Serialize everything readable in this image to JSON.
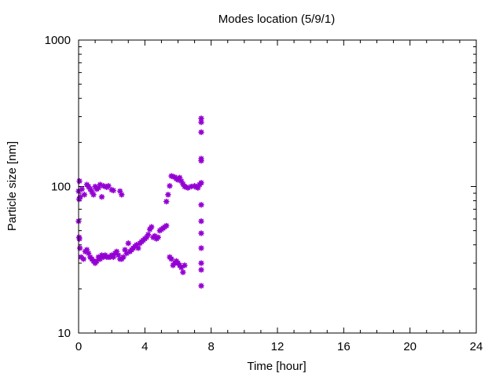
{
  "chart_data": {
    "type": "scatter",
    "title": "Modes location (5/9/1)",
    "xlabel": "Time [hour]",
    "ylabel": "Particle size [nm]",
    "xlim": [
      0,
      24
    ],
    "ylim": [
      10,
      1000
    ],
    "yscale": "log",
    "xticks": [
      0,
      4,
      8,
      12,
      16,
      20,
      24
    ],
    "xtick_labels": [
      "0",
      "4",
      "8",
      "12",
      "16",
      "20",
      "24"
    ],
    "yticks": [
      10,
      100,
      1000
    ],
    "ytick_labels": [
      "10",
      "100",
      "1000"
    ],
    "grid": false,
    "marker_color": "#9400d3",
    "series": [
      {
        "points": [
          [
            0.0,
            93
          ],
          [
            0.03,
            82
          ],
          [
            0.05,
            109
          ],
          [
            0.1,
            85
          ],
          [
            0.2,
            96
          ],
          [
            0.35,
            88
          ],
          [
            0.5,
            103
          ],
          [
            0.6,
            100
          ],
          [
            0.7,
            96
          ],
          [
            0.8,
            92
          ],
          [
            0.9,
            88
          ],
          [
            1.0,
            100
          ],
          [
            1.1,
            96
          ],
          [
            1.2,
            98
          ],
          [
            1.3,
            103
          ],
          [
            1.4,
            85
          ],
          [
            1.5,
            101
          ],
          [
            1.6,
            100
          ],
          [
            1.7,
            99
          ],
          [
            1.8,
            101
          ],
          [
            2.0,
            95
          ],
          [
            2.1,
            94
          ],
          [
            2.5,
            93
          ],
          [
            2.6,
            88
          ],
          [
            5.3,
            79
          ],
          [
            5.4,
            88
          ],
          [
            5.5,
            101
          ],
          [
            5.6,
            118
          ],
          [
            5.7,
            117
          ],
          [
            5.8,
            116
          ],
          [
            5.9,
            113
          ],
          [
            6.0,
            111
          ],
          [
            6.1,
            115
          ],
          [
            6.2,
            109
          ],
          [
            6.3,
            104
          ],
          [
            6.4,
            100
          ],
          [
            6.5,
            99
          ],
          [
            6.6,
            98
          ],
          [
            6.8,
            100
          ],
          [
            7.0,
            101
          ],
          [
            7.1,
            99
          ],
          [
            7.2,
            98
          ],
          [
            7.3,
            103
          ],
          [
            7.4,
            106
          ],
          [
            0.0,
            58
          ],
          [
            0.03,
            45
          ],
          [
            0.05,
            44
          ],
          [
            0.08,
            38
          ],
          [
            0.15,
            33
          ],
          [
            0.3,
            32
          ],
          [
            0.4,
            36
          ],
          [
            0.5,
            37
          ],
          [
            0.6,
            35
          ],
          [
            0.7,
            33
          ],
          [
            0.8,
            32
          ],
          [
            0.9,
            31
          ],
          [
            1.0,
            30
          ],
          [
            1.1,
            31
          ],
          [
            1.2,
            33
          ],
          [
            1.3,
            32
          ],
          [
            1.4,
            34
          ],
          [
            1.5,
            33
          ],
          [
            1.6,
            34
          ],
          [
            1.7,
            33
          ],
          [
            1.8,
            33
          ],
          [
            1.9,
            33
          ],
          [
            2.0,
            34
          ],
          [
            2.1,
            33
          ],
          [
            2.2,
            35
          ],
          [
            2.3,
            36
          ],
          [
            2.4,
            34
          ],
          [
            2.5,
            32
          ],
          [
            2.6,
            32
          ],
          [
            2.7,
            33
          ],
          [
            2.8,
            37
          ],
          [
            2.9,
            35
          ],
          [
            3.0,
            41
          ],
          [
            3.1,
            36
          ],
          [
            3.2,
            37
          ],
          [
            3.3,
            38
          ],
          [
            3.4,
            39
          ],
          [
            3.5,
            40
          ],
          [
            3.6,
            38
          ],
          [
            3.7,
            41
          ],
          [
            3.8,
            42
          ],
          [
            3.9,
            43
          ],
          [
            4.0,
            44
          ],
          [
            4.1,
            45
          ],
          [
            4.2,
            47
          ],
          [
            4.3,
            51
          ],
          [
            4.4,
            53
          ],
          [
            4.5,
            45
          ],
          [
            4.6,
            46
          ],
          [
            4.7,
            44
          ],
          [
            4.8,
            45
          ],
          [
            4.9,
            50
          ],
          [
            5.0,
            51
          ],
          [
            5.1,
            52
          ],
          [
            5.2,
            53
          ],
          [
            5.3,
            54
          ],
          [
            5.5,
            33
          ],
          [
            5.6,
            32
          ],
          [
            5.7,
            29
          ],
          [
            5.8,
            30
          ],
          [
            5.9,
            31
          ],
          [
            6.0,
            30
          ],
          [
            6.1,
            29
          ],
          [
            6.2,
            28
          ],
          [
            6.3,
            26
          ],
          [
            6.4,
            29
          ],
          [
            7.4,
            21
          ],
          [
            7.4,
            27
          ],
          [
            7.4,
            30
          ],
          [
            7.4,
            38
          ],
          [
            7.4,
            48
          ],
          [
            7.4,
            58
          ],
          [
            7.4,
            75
          ],
          [
            7.4,
            150
          ],
          [
            7.4,
            155
          ],
          [
            7.4,
            235
          ],
          [
            7.4,
            275
          ],
          [
            7.4,
            292
          ]
        ]
      }
    ]
  }
}
